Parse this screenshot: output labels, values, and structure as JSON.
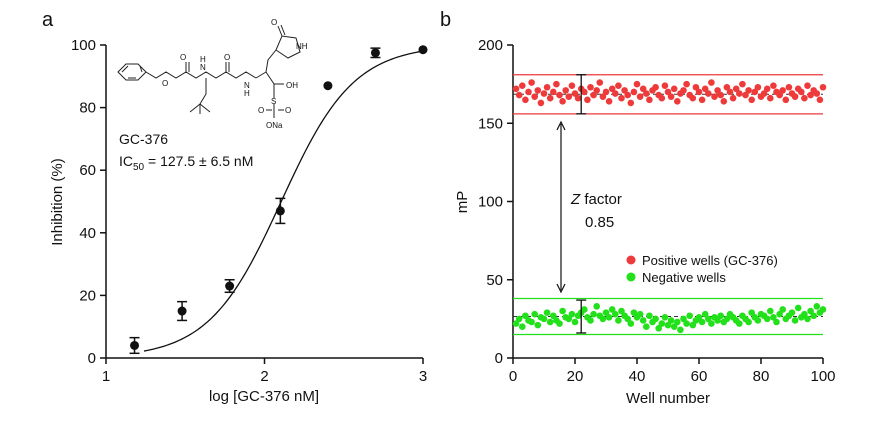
{
  "chart_data": [
    {
      "panel_label": "a",
      "type": "scatter",
      "title": "",
      "xlabel": "log [GC-376 nM]",
      "ylabel": "Inhibition (%)",
      "xlim": [
        1,
        3
      ],
      "ylim": [
        0,
        100
      ],
      "x_ticks": [
        "1",
        "2",
        "3"
      ],
      "y_ticks": [
        "0",
        "20",
        "40",
        "60",
        "80",
        "100"
      ],
      "compound_name": "GC-376",
      "ic50_prefix": "IC",
      "ic50_subscript": "50",
      "ic50_value": " = 127.5 ± 6.5 nM",
      "structure_labels": [
        "O",
        "O",
        "O",
        "O",
        "N",
        "N",
        "H",
        "H",
        "NH",
        "OH",
        "S",
        "O",
        "O",
        "ONa"
      ],
      "series": [
        {
          "name": "Inhibition",
          "points": [
            {
              "x": 1.18,
              "y": 4,
              "err": 2.5
            },
            {
              "x": 1.48,
              "y": 15,
              "err": 3
            },
            {
              "x": 1.78,
              "y": 23,
              "err": 2
            },
            {
              "x": 2.1,
              "y": 47,
              "err": 4
            },
            {
              "x": 2.4,
              "y": 87,
              "err": 0
            },
            {
              "x": 2.7,
              "y": 97.5,
              "err": 1.5
            },
            {
              "x": 3.0,
              "y": 98.5,
              "err": 0
            }
          ]
        }
      ],
      "fit_curve": {
        "model": "logistic",
        "bottom": 0,
        "top": 100,
        "log_ic50": 2.1055,
        "hill_slope": 1.9,
        "x_start": 1.24,
        "x_end": 3.0
      }
    },
    {
      "panel_label": "b",
      "type": "scatter",
      "title": "",
      "xlabel": "Well number",
      "ylabel": "mP",
      "xlim": [
        0,
        100
      ],
      "ylim": [
        0,
        200
      ],
      "x_ticks": [
        "0",
        "20",
        "40",
        "60",
        "80",
        "100"
      ],
      "y_ticks": [
        "0",
        "50",
        "100",
        "150",
        "200"
      ],
      "z_factor_prefix": "Z",
      "z_factor_suffix": " factor",
      "z_factor_value": "0.85",
      "series": [
        {
          "name": "Positive wells (GC-376)",
          "color": "#ee3a3a",
          "mean": 168.5,
          "upper_line": 181,
          "lower_line": 156,
          "sd_bar_x": 22,
          "sd_bar": [
            156,
            181
          ],
          "values": [
            172,
            168,
            174,
            165,
            170,
            176,
            167,
            171,
            163,
            169,
            173,
            166,
            170,
            175,
            168,
            164,
            171,
            167,
            174,
            169,
            166,
            172,
            170,
            165,
            173,
            168,
            171,
            176,
            167,
            170,
            164,
            172,
            169,
            174,
            166,
            171,
            168,
            163,
            170,
            175,
            167,
            172,
            169,
            165,
            171,
            173,
            168,
            166,
            174,
            170,
            167,
            172,
            164,
            169,
            171,
            175,
            168,
            166,
            173,
            170,
            165,
            172,
            169,
            176,
            167,
            171,
            168,
            164,
            173,
            170,
            166,
            172,
            169,
            175,
            168,
            171,
            165,
            170,
            173,
            167,
            169,
            172,
            166,
            174,
            170,
            168,
            171,
            165,
            173,
            169,
            167,
            172,
            170,
            166,
            174,
            168,
            171,
            169,
            165,
            173
          ]
        },
        {
          "name": "Negative wells",
          "color": "#22e01a",
          "mean": 26.5,
          "upper_line": 38,
          "lower_line": 15,
          "sd_bar_x": 22,
          "sd_bar": [
            16,
            37
          ],
          "values": [
            22,
            25,
            20,
            27,
            24,
            23,
            28,
            21,
            26,
            25,
            29,
            23,
            27,
            24,
            22,
            30,
            26,
            25,
            28,
            23,
            27,
            29,
            31,
            26,
            24,
            28,
            33,
            27,
            25,
            29,
            26,
            31,
            28,
            24,
            30,
            27,
            25,
            22,
            29,
            26,
            28,
            24,
            20,
            27,
            23,
            25,
            19,
            22,
            26,
            21,
            24,
            20,
            23,
            18,
            25,
            22,
            27,
            21,
            24,
            26,
            23,
            28,
            25,
            22,
            26,
            24,
            27,
            23,
            25,
            28,
            26,
            24,
            22,
            27,
            25,
            23,
            29,
            26,
            24,
            28,
            27,
            25,
            30,
            26,
            23,
            28,
            31,
            25,
            27,
            29,
            24,
            32,
            26,
            28,
            25,
            30,
            27,
            33,
            29,
            31
          ]
        }
      ]
    }
  ]
}
